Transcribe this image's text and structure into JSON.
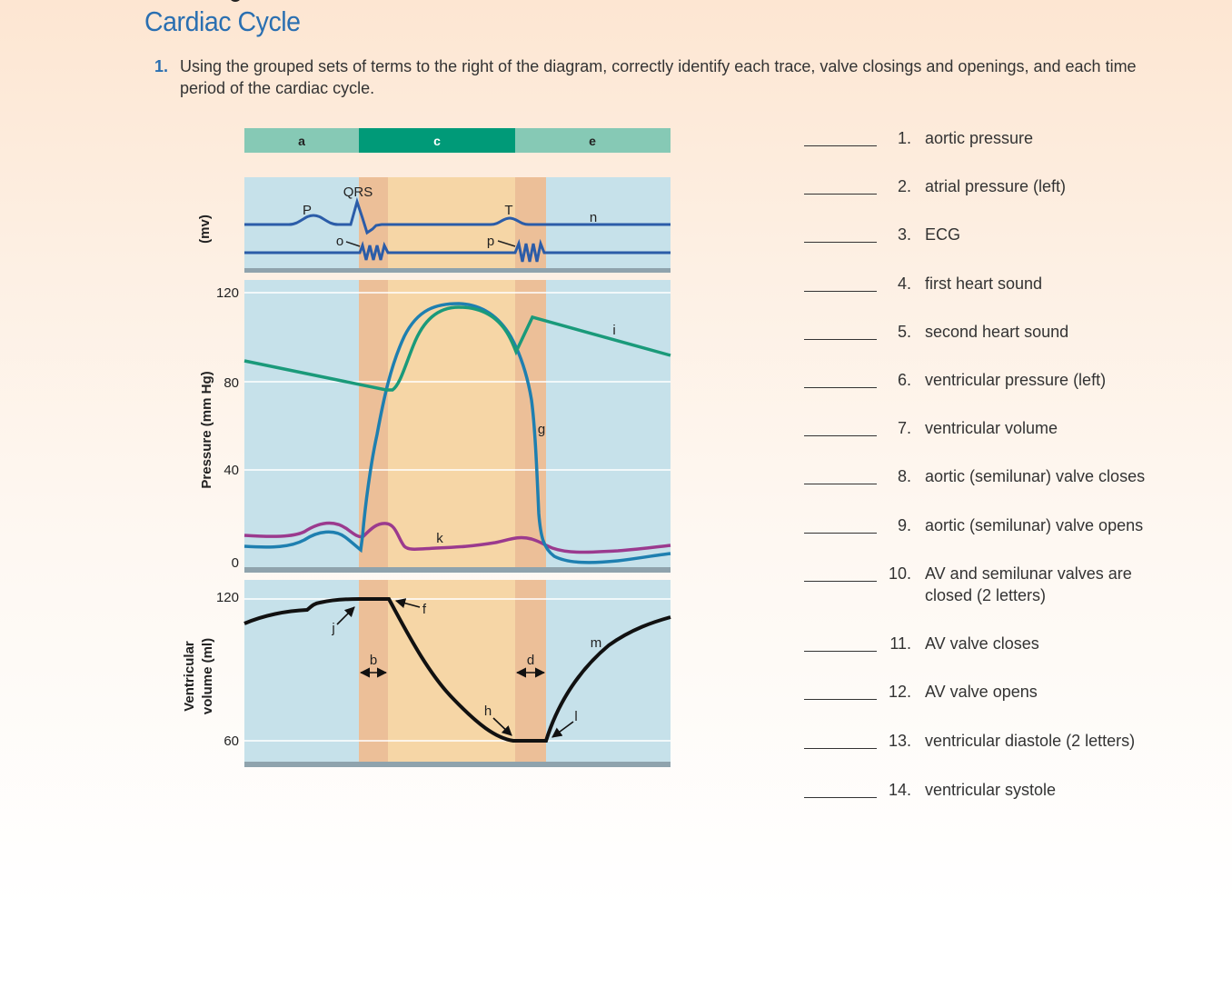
{
  "page": {
    "title": "Cardiac Cycle",
    "question_number": "1.",
    "question_text": "Using the grouped sets of terms to the right of the diagram, correctly identify each trace, valve closings and openings, and each time period of the cardiac cycle."
  },
  "diagram": {
    "period_labels": [
      "a",
      "c",
      "e"
    ],
    "ecg_labels": {
      "p_wave": "P",
      "qrs": "QRS",
      "t_wave": "T"
    },
    "letter_labels": {
      "b": "b",
      "d": "d",
      "f": "f",
      "g": "g",
      "h": "h",
      "i": "i",
      "j": "j",
      "k": "k",
      "l": "l",
      "m": "m",
      "n": "n",
      "o": "o",
      "p": "p"
    },
    "axis_labels": {
      "ecg": "(mv)",
      "pressure": "Pressure (mm Hg)",
      "volume_line1": "Ventricular",
      "volume_line2": "volume (ml)"
    },
    "pressure_ticks": [
      "120",
      "80",
      "40",
      "0"
    ],
    "volume_ticks": [
      "120",
      "60"
    ],
    "colors": {
      "aortic": "#1a9a7a",
      "ventricular": "#1e7fb0",
      "atrial": "#9b3a8e",
      "ecg": "#2b5ca8",
      "volume": "#111111",
      "period_light": "#86c9b5",
      "period_dark": "#009a78",
      "panel_bg": "#c6e1ea",
      "systole_band": "#f6d6a6",
      "isovolumetric_band": "#ecbf98"
    }
  },
  "answers": [
    {
      "num": "1.",
      "label": "aortic pressure"
    },
    {
      "num": "2.",
      "label": "atrial pressure (left)"
    },
    {
      "num": "3.",
      "label": "ECG"
    },
    {
      "num": "4.",
      "label": "first heart sound"
    },
    {
      "num": "5.",
      "label": "second heart sound"
    },
    {
      "num": "6.",
      "label": "ventricular pressure (left)"
    },
    {
      "num": "7.",
      "label": "ventricular volume"
    },
    {
      "num": "8.",
      "label": "aortic (semilunar) valve closes"
    },
    {
      "num": "9.",
      "label": "aortic (semilunar) valve opens"
    },
    {
      "num": "10.",
      "label": "AV and semilunar valves are closed (2 letters)"
    },
    {
      "num": "11.",
      "label": "AV valve closes"
    },
    {
      "num": "12.",
      "label": "AV valve opens"
    },
    {
      "num": "13.",
      "label": "ventricular diastole (2 letters)"
    },
    {
      "num": "14.",
      "label": "ventricular systole"
    }
  ]
}
